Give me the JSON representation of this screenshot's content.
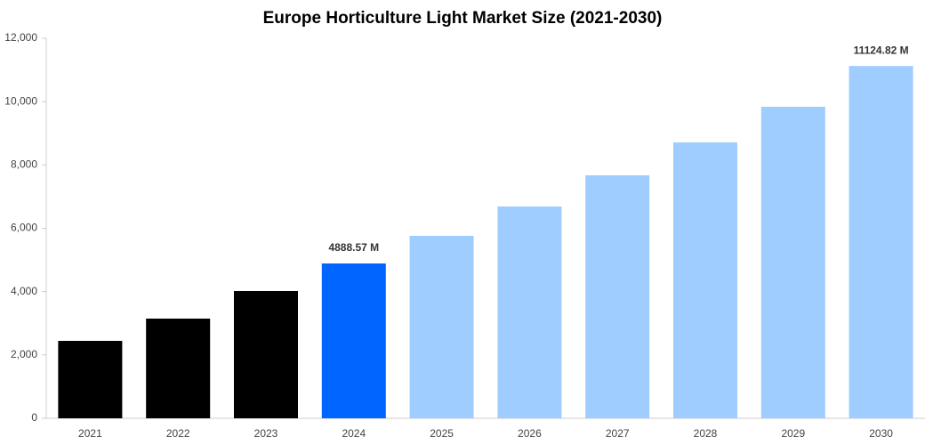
{
  "chart_data": {
    "type": "bar",
    "title": "Europe Horticulture Light Market Size (2021-2030)",
    "categories": [
      "2021",
      "2022",
      "2023",
      "2024",
      "2025",
      "2026",
      "2027",
      "2028",
      "2029",
      "2030"
    ],
    "values": [
      2445,
      3148,
      4019,
      4888.57,
      5762,
      6689,
      7673,
      8713,
      9837,
      11124.82
    ],
    "value_labels": [
      null,
      null,
      null,
      "4888.57 M",
      null,
      null,
      null,
      null,
      null,
      "11124.82 M"
    ],
    "colors": [
      "#000000",
      "#000000",
      "#000000",
      "#0066ff",
      "#a0cdff",
      "#a0cdff",
      "#a0cdff",
      "#a0cdff",
      "#a0cdff",
      "#a0cdff"
    ],
    "ylim": [
      0,
      12000
    ],
    "yticks": [
      0,
      {
        "value": 2000,
        "label": "2,000"
      },
      {
        "value": 4000,
        "label": "4,000"
      },
      {
        "value": 6000,
        "label": "6,000"
      },
      {
        "value": 8000,
        "label": "8,000"
      },
      {
        "value": 10000,
        "label": "10,000"
      },
      {
        "value": 12000,
        "label": "12,000"
      }
    ],
    "grid": false
  }
}
